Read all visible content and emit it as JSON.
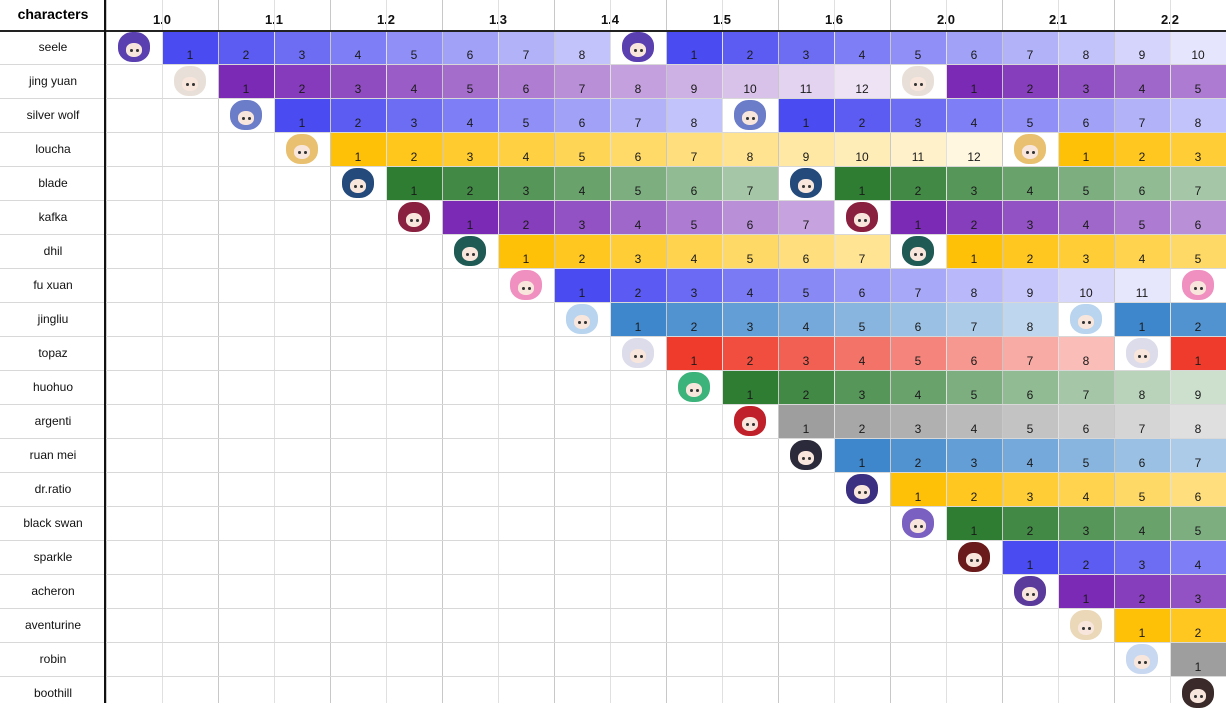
{
  "corner_label": "characters",
  "phases": [
    "1.0",
    "1.1",
    "1.2",
    "1.3",
    "1.4",
    "1.5",
    "1.6",
    "2.0",
    "2.1",
    "2.2"
  ],
  "characters": [
    {
      "name": "seele",
      "color": "#4b4bf2",
      "avatar": "#5a3fb0",
      "start": 1,
      "reruns": [
        10
      ]
    },
    {
      "name": "jing yuan",
      "color": "#7a2ab5",
      "avatar": "#e8e0d8",
      "start": 2,
      "reruns": [
        15
      ]
    },
    {
      "name": "silver wolf",
      "color": "#4b4bf2",
      "avatar": "#6b7cc8",
      "start": 3,
      "reruns": [
        12
      ]
    },
    {
      "name": "loucha",
      "color": "#ffc107",
      "avatar": "#e8c070",
      "start": 4,
      "reruns": [
        17
      ]
    },
    {
      "name": "blade",
      "color": "#2e7d32",
      "avatar": "#234a7a",
      "start": 5,
      "reruns": [
        13
      ]
    },
    {
      "name": "kafka",
      "color": "#7a2ab5",
      "avatar": "#8a2040",
      "start": 6,
      "reruns": [
        14
      ]
    },
    {
      "name": "dhil",
      "color": "#ffc107",
      "avatar": "#1f5a55",
      "start": 7,
      "reruns": [
        15
      ]
    },
    {
      "name": "fu xuan",
      "color": "#4b4bf2",
      "avatar": "#f090c0",
      "start": 8,
      "reruns": [
        20
      ]
    },
    {
      "name": "jingliu",
      "color": "#3f87cc",
      "avatar": "#b8d4ee",
      "start": 9,
      "reruns": [
        18
      ]
    },
    {
      "name": "topaz",
      "color": "#ef3b2c",
      "avatar": "#dcdcea",
      "start": 10,
      "reruns": [
        19
      ]
    },
    {
      "name": "huohuo",
      "color": "#2e7d32",
      "avatar": "#3cb37a",
      "start": 11,
      "reruns": []
    },
    {
      "name": "argenti",
      "color": "#9e9e9e",
      "avatar": "#c0202a",
      "start": 12,
      "reruns": []
    },
    {
      "name": "ruan mei",
      "color": "#3f87cc",
      "avatar": "#2a2a3a",
      "start": 13,
      "reruns": []
    },
    {
      "name": "dr.ratio",
      "color": "#ffc107",
      "avatar": "#3a2f80",
      "start": 14,
      "reruns": []
    },
    {
      "name": "black swan",
      "color": "#2e7d32",
      "avatar": "#7a60c0",
      "start": 15,
      "reruns": []
    },
    {
      "name": "sparkle",
      "color": "#4b4bf2",
      "avatar": "#6a1a1a",
      "start": 16,
      "reruns": []
    },
    {
      "name": "acheron",
      "color": "#7a2ab5",
      "avatar": "#5a3a9a",
      "start": 17,
      "reruns": []
    },
    {
      "name": "aventurine",
      "color": "#ffc107",
      "avatar": "#ead8b8",
      "start": 18,
      "reruns": []
    },
    {
      "name": "robin",
      "color": "#9e9e9e",
      "avatar": "#c8d8f0",
      "start": 19,
      "reruns": []
    },
    {
      "name": "boothill",
      "color": "#9e9e9e",
      "avatar": "#3a2a2a",
      "start": 20,
      "reruns": []
    }
  ]
}
